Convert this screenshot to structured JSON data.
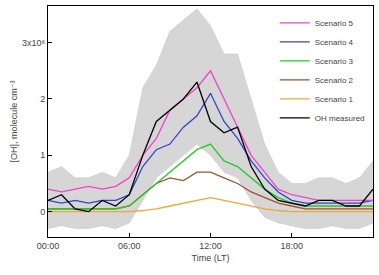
{
  "chart_data": {
    "type": "line",
    "x_label": "Time (LT)",
    "y_label": "[OH], molecule cm⁻³",
    "x": [
      0,
      1,
      2,
      3,
      4,
      5,
      6,
      7,
      8,
      9,
      10,
      11,
      12,
      13,
      14,
      15,
      16,
      17,
      18,
      19,
      20,
      21,
      22,
      23,
      24
    ],
    "xlim": [
      0,
      24
    ],
    "xticks": [
      {
        "value": 0,
        "label": "00:00"
      },
      {
        "value": 6,
        "label": "06:00"
      },
      {
        "value": 12,
        "label": "12:00"
      },
      {
        "value": 18,
        "label": "18:00"
      },
      {
        "value": 24,
        "label": "00:00"
      }
    ],
    "ylim": [
      -0.45,
      3.65
    ],
    "yticks": [
      0,
      1,
      2,
      {
        "value": 3,
        "label": "3x10⁶"
      }
    ],
    "grid": false,
    "legend": "top right",
    "series": [
      {
        "name": "OH measured",
        "color": "#000000",
        "values": [
          0.2,
          0.3,
          0.05,
          0.0,
          0.2,
          0.1,
          0.3,
          1.0,
          1.6,
          1.8,
          2.0,
          2.3,
          1.6,
          1.4,
          1.5,
          0.8,
          0.4,
          0.2,
          0.15,
          0.1,
          0.2,
          0.2,
          0.1,
          0.1,
          0.4
        ],
        "lower": [
          -0.3,
          -0.25,
          -0.3,
          -0.3,
          -0.25,
          -0.3,
          -0.2,
          0.2,
          0.6,
          0.8,
          1.0,
          1.2,
          1.0,
          0.7,
          0.6,
          0.2,
          -0.1,
          -0.2,
          -0.25,
          -0.3,
          -0.3,
          -0.25,
          -0.3,
          -0.3,
          -0.2
        ],
        "upper": [
          0.7,
          0.8,
          0.6,
          0.6,
          0.7,
          0.6,
          1.0,
          2.2,
          2.6,
          3.2,
          3.4,
          3.6,
          3.3,
          2.8,
          2.8,
          2.0,
          1.2,
          0.7,
          0.5,
          0.5,
          0.6,
          0.6,
          0.5,
          0.6,
          0.9
        ]
      },
      {
        "name": "Scenario 1",
        "color": "#f0a830",
        "values": [
          0,
          0,
          0,
          0,
          0,
          0,
          0,
          0.02,
          0.05,
          0.1,
          0.15,
          0.2,
          0.25,
          0.2,
          0.15,
          0.1,
          0.05,
          0.02,
          0,
          0,
          0,
          0,
          0,
          0,
          0
        ]
      },
      {
        "name": "Scenario 2",
        "color": "#a0522d",
        "values": [
          0.05,
          0.05,
          0.05,
          0.05,
          0.05,
          0.05,
          0.1,
          0.3,
          0.5,
          0.6,
          0.55,
          0.7,
          0.7,
          0.6,
          0.5,
          0.35,
          0.25,
          0.15,
          0.1,
          0.05,
          0.05,
          0.05,
          0.05,
          0.05,
          0.05
        ]
      },
      {
        "name": "Scenario 3",
        "color": "#22cc22",
        "values": [
          0.05,
          0.05,
          0.05,
          0.05,
          0.05,
          0.05,
          0.1,
          0.3,
          0.5,
          0.7,
          0.9,
          1.1,
          1.2,
          0.9,
          0.8,
          0.6,
          0.4,
          0.25,
          0.15,
          0.1,
          0.1,
          0.1,
          0.1,
          0.1,
          0.1
        ]
      },
      {
        "name": "Scenario 4",
        "color": "#3344cc",
        "values": [
          0.2,
          0.15,
          0.2,
          0.15,
          0.2,
          0.2,
          0.3,
          0.8,
          1.1,
          1.2,
          1.5,
          1.7,
          2.1,
          1.6,
          1.3,
          0.9,
          0.6,
          0.35,
          0.2,
          0.15,
          0.15,
          0.15,
          0.15,
          0.15,
          0.2
        ]
      },
      {
        "name": "Scenario 5",
        "color": "#ee44cc",
        "values": [
          0.4,
          0.35,
          0.4,
          0.45,
          0.4,
          0.45,
          0.6,
          1.0,
          1.3,
          1.8,
          2.0,
          2.2,
          2.5,
          2.0,
          1.5,
          1.0,
          0.7,
          0.4,
          0.3,
          0.25,
          0.2,
          0.2,
          0.2,
          0.2,
          0.2
        ]
      }
    ]
  }
}
